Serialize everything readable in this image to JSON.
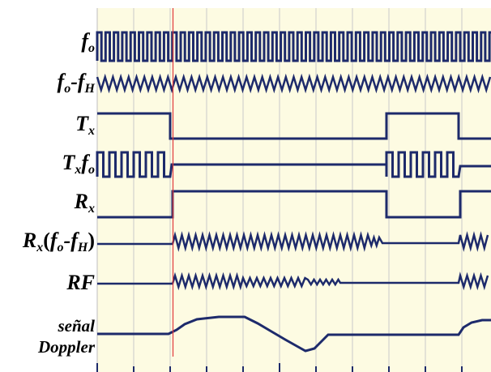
{
  "colors": {
    "plot_bg": "#fdfbe2",
    "grid": "#c9c9c9",
    "trace": "#1d2a6b",
    "marker": "#e0383b",
    "label": "#000000"
  },
  "labels": {
    "fo": {
      "main": "f",
      "sub": "o"
    },
    "fo_fh": {
      "a": "f",
      "a_sub": "o",
      "dash": "-",
      "b": "f",
      "b_sub": "H"
    },
    "tx": {
      "main": "T",
      "sub": "x"
    },
    "txfo": {
      "a": "T",
      "a_sub": "x",
      "b": "f",
      "b_sub": "o"
    },
    "rx": {
      "main": "R",
      "sub": "x"
    },
    "rx_mix": {
      "a": "R",
      "a_sub": "x",
      "open": "(",
      "b": "f",
      "b_sub": "o",
      "dash": "-",
      "c": "f",
      "c_sub": "H",
      "close": ")"
    },
    "rf": {
      "text": "RF"
    },
    "doppler": {
      "line1": "señal",
      "line2": "Doppler"
    }
  }
}
